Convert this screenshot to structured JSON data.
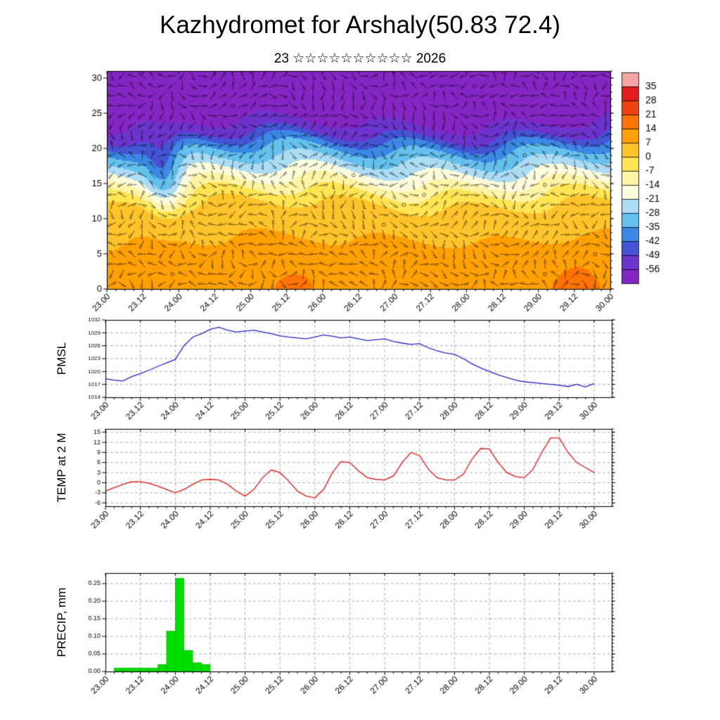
{
  "title": "Kazhydromet for Arshaly(50.83 72.4)",
  "subtitle": "23 ☆☆☆☆☆☆☆☆☆☆ 2026",
  "time_axis": {
    "tick_hours": [
      0,
      12,
      24,
      36,
      48,
      60,
      72,
      84,
      96,
      108,
      120,
      132,
      144,
      156,
      168
    ],
    "tick_labels": [
      "23.00",
      "23.12",
      "24.00",
      "24.12",
      "25.00",
      "25.12",
      "26.00",
      "26.12",
      "27.00",
      "27.12",
      "28.00",
      "28.12",
      "29.00",
      "29.12",
      "30.00"
    ],
    "minor_step_hours": 3,
    "data_step_hours": 3
  },
  "chart_data": [
    {
      "type": "heatmap",
      "name": "temperature-wind-cross-section",
      "description": "time-height cross section of temperature (shaded) with wind barbs",
      "ylim": [
        0,
        31
      ],
      "y_ticks": [
        0,
        5,
        10,
        15,
        20,
        25,
        30
      ],
      "y_tick_labels": [
        "0",
        "5",
        "10",
        "15",
        "20",
        "25",
        "30"
      ],
      "profile": {
        "levels": [
          0,
          4,
          8,
          11.5,
          13,
          14.5,
          16,
          17.5,
          19,
          20.5,
          21.5,
          22.5,
          24,
          31
        ],
        "temps": [
          12,
          10,
          6,
          2,
          -3,
          -10,
          -17,
          -24,
          -31,
          -38,
          -46,
          -52,
          -57,
          -60
        ]
      },
      "features": {
        "cold_dip_hour": 19,
        "warm_spot_hours": [
          62,
          110,
          157
        ]
      },
      "wind_barbs": {
        "nx": 50,
        "ny": 22
      },
      "colormap": {
        "thresholds": [
          35,
          28,
          21,
          14,
          7,
          0,
          -7,
          -14,
          -21,
          -28,
          -35,
          -42,
          -49,
          -56
        ],
        "labels": [
          "35",
          "28",
          "21",
          "14",
          "7",
          "0",
          "-7",
          "-14",
          "-21",
          "-28",
          "-35",
          "-42",
          "-49",
          "-56"
        ],
        "colors": [
          "#f4a4a4",
          "#e01c1c",
          "#ee4414",
          "#fe7404",
          "#ffa004",
          "#ffc42c",
          "#ffe454",
          "#fff4a4",
          "#fcfcdc",
          "#acdcf4",
          "#64c0ec",
          "#3c88e4",
          "#4454d4",
          "#6c34cc",
          "#8426c4"
        ]
      }
    },
    {
      "type": "line",
      "name": "pmsl",
      "ylabel": "PMSL",
      "color": "#2222cc",
      "ylim": [
        1014,
        1032
      ],
      "y_ticks": [
        1014,
        1017,
        1020,
        1023,
        1026,
        1029,
        1032
      ],
      "y_tick_labels": [
        "1014",
        "1017",
        "1020",
        "1023",
        "1026",
        "1029",
        "1032"
      ],
      "grid_y": [
        1017,
        1020,
        1023,
        1026,
        1029
      ],
      "y_minor": 1,
      "values": [
        1018.3,
        1018.0,
        1017.8,
        1018.8,
        1019.5,
        1020.3,
        1021.2,
        1022.0,
        1022.8,
        1026.0,
        1028.0,
        1028.8,
        1029.8,
        1030.3,
        1029.6,
        1029.2,
        1029.4,
        1029.6,
        1029.2,
        1028.8,
        1028.3,
        1028.0,
        1027.8,
        1027.6,
        1028.0,
        1028.5,
        1028.2,
        1027.8,
        1028.0,
        1027.6,
        1027.2,
        1027.4,
        1027.6,
        1027.0,
        1026.6,
        1026.3,
        1026.5,
        1025.5,
        1024.8,
        1024.3,
        1024.0,
        1023.0,
        1021.8,
        1020.8,
        1020.0,
        1019.2,
        1018.6,
        1018.0,
        1017.6,
        1017.4,
        1017.2,
        1017.0,
        1016.8,
        1016.5,
        1017.0,
        1016.4,
        1017.2
      ]
    },
    {
      "type": "line",
      "name": "temp-2m",
      "ylabel": "TEMP at 2 M",
      "color": "#dd1111",
      "ylim": [
        -7,
        16
      ],
      "y_ticks": [
        -6,
        -3,
        0,
        3,
        6,
        9,
        12,
        15
      ],
      "y_tick_labels": [
        "-6",
        "-3",
        "0",
        "3",
        "6",
        "9",
        "12",
        "15"
      ],
      "grid_y": [
        -6,
        -3,
        0,
        3,
        6,
        9,
        12,
        15
      ],
      "y_minor": 1,
      "values": [
        -2.5,
        -1.5,
        -0.5,
        0.3,
        0.3,
        -0.2,
        -1.0,
        -2.0,
        -3.0,
        -2.0,
        -0.5,
        0.8,
        1.0,
        0.8,
        -0.5,
        -2.5,
        -4.0,
        -2.0,
        1.5,
        3.8,
        3.0,
        0.5,
        -2.5,
        -4.0,
        -4.5,
        -2.0,
        3.0,
        6.3,
        6.0,
        3.5,
        1.5,
        1.0,
        0.8,
        2.0,
        6.0,
        9.0,
        8.0,
        4.0,
        1.5,
        0.8,
        0.8,
        2.5,
        7.0,
        10.2,
        10.0,
        6.0,
        3.0,
        1.8,
        1.5,
        4.0,
        9.0,
        13.3,
        13.3,
        9.0,
        6.0,
        4.5,
        3.0
      ]
    },
    {
      "type": "bar",
      "name": "precip",
      "ylabel": "PRECIP, mm",
      "color": "#00dd00",
      "ylim": [
        0,
        0.28
      ],
      "y_ticks": [
        0,
        0.05,
        0.1,
        0.15,
        0.2,
        0.25
      ],
      "y_tick_labels": [
        "0.00",
        "0.05",
        "0.10",
        "0.15",
        "0.20",
        "0.25"
      ],
      "grid_y": [
        0.05,
        0.1,
        0.15,
        0.2,
        0.25
      ],
      "y_minor": 0.01,
      "values": [
        0,
        0.01,
        0.01,
        0.01,
        0.01,
        0.01,
        0.02,
        0.115,
        0.265,
        0.06,
        0.025,
        0.02,
        0,
        0,
        0,
        0,
        0,
        0,
        0,
        0,
        0,
        0,
        0,
        0,
        0,
        0,
        0,
        0,
        0,
        0,
        0,
        0,
        0,
        0,
        0,
        0,
        0,
        0,
        0,
        0,
        0,
        0,
        0,
        0,
        0,
        0,
        0,
        0,
        0,
        0,
        0,
        0,
        0,
        0,
        0,
        0,
        0
      ]
    }
  ]
}
